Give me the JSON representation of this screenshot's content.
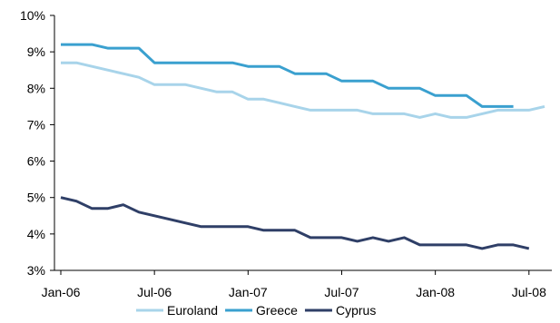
{
  "chart_data": {
    "type": "line",
    "x": [
      "Jan-06",
      "Feb-06",
      "Mar-06",
      "Apr-06",
      "May-06",
      "Jun-06",
      "Jul-06",
      "Aug-06",
      "Sep-06",
      "Oct-06",
      "Nov-06",
      "Dec-06",
      "Jan-07",
      "Feb-07",
      "Mar-07",
      "Apr-07",
      "May-07",
      "Jun-07",
      "Jul-07",
      "Aug-07",
      "Sep-07",
      "Oct-07",
      "Nov-07",
      "Dec-07",
      "Jan-08",
      "Feb-08",
      "Mar-08",
      "Apr-08",
      "May-08",
      "Jun-08",
      "Jul-08",
      "Aug-08"
    ],
    "x_tick_labels": [
      "Jan-06",
      "Jul-06",
      "Jan-07",
      "Jul-07",
      "Jan-08",
      "Jul-08"
    ],
    "y_tick_labels": [
      "3%",
      "4%",
      "5%",
      "6%",
      "7%",
      "8%",
      "9%",
      "10%"
    ],
    "ylim": [
      3,
      10
    ],
    "y_ticks": [
      3,
      4,
      5,
      6,
      7,
      8,
      9,
      10
    ],
    "grid": false,
    "legend_position": "bottom",
    "series": [
      {
        "name": "Euroland",
        "color": "#a8d4ea",
        "values": [
          8.7,
          8.7,
          8.6,
          8.5,
          8.4,
          8.3,
          8.1,
          8.1,
          8.1,
          8.0,
          7.9,
          7.9,
          7.7,
          7.7,
          7.6,
          7.5,
          7.4,
          7.4,
          7.4,
          7.4,
          7.3,
          7.3,
          7.3,
          7.2,
          7.3,
          7.2,
          7.2,
          7.3,
          7.4,
          7.4,
          7.4,
          7.5
        ]
      },
      {
        "name": "Greece",
        "color": "#3aa0cf",
        "values": [
          9.2,
          9.2,
          9.2,
          9.1,
          9.1,
          9.1,
          8.7,
          8.7,
          8.7,
          8.7,
          8.7,
          8.7,
          8.6,
          8.6,
          8.6,
          8.4,
          8.4,
          8.4,
          8.2,
          8.2,
          8.2,
          8.0,
          8.0,
          8.0,
          7.8,
          7.8,
          7.8,
          7.5,
          7.5,
          7.5,
          null,
          null
        ]
      },
      {
        "name": "Cyprus",
        "color": "#2f3f67",
        "values": [
          5.0,
          4.9,
          4.7,
          4.7,
          4.8,
          4.6,
          4.5,
          4.4,
          4.3,
          4.2,
          4.2,
          4.2,
          4.2,
          4.1,
          4.1,
          4.1,
          3.9,
          3.9,
          3.9,
          3.8,
          3.9,
          3.8,
          3.9,
          3.7,
          3.7,
          3.7,
          3.7,
          3.6,
          3.7,
          3.7,
          3.6,
          null
        ]
      }
    ]
  }
}
